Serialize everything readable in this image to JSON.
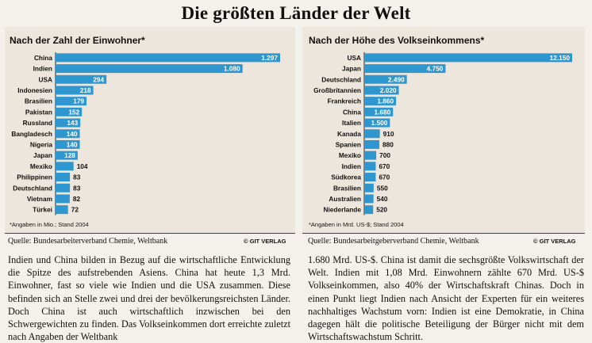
{
  "title": "Die größten Länder der Welt",
  "left": {
    "subtitle": "Nach der Zahl der Einwohner*",
    "footnote": "*Angaben in Mio.; Stand 2004",
    "source": "Quelle: Bundesarbeiterverband Chemie, Weltbank",
    "credit": "© GIT VERLAG"
  },
  "right": {
    "subtitle": "Nach der Höhe des Volkseinkommens*",
    "footnote": "*Angaben in Mrd. US-$; Stand 2004",
    "source": "Quelle: Bundesarbeitgeberverband Chemie, Weltbank",
    "credit": "© GIT VERLAG"
  },
  "colors": {
    "bar": "#2f97d0",
    "bar_text": "#ffffff",
    "label": "#111111"
  },
  "chart_data": [
    {
      "type": "bar",
      "orientation": "horizontal",
      "title": "Nach der Zahl der Einwohner*",
      "unit": "Mio.",
      "categories": [
        "China",
        "Indien",
        "USA",
        "Indonesien",
        "Brasilien",
        "Pakistan",
        "Russland",
        "Bangladesch",
        "Nigeria",
        "Japan",
        "Mexiko",
        "Philippinen",
        "Deutschland",
        "Vietnam",
        "Türkei"
      ],
      "values": [
        1297,
        1080,
        294,
        218,
        179,
        152,
        143,
        140,
        140,
        128,
        104,
        83,
        83,
        82,
        72
      ],
      "value_labels": [
        "1.297",
        "1.080",
        "294",
        "218",
        "179",
        "152",
        "143",
        "140",
        "140",
        "128",
        "104",
        "83",
        "83",
        "82",
        "72"
      ],
      "xlim": [
        0,
        1297
      ]
    },
    {
      "type": "bar",
      "orientation": "horizontal",
      "title": "Nach der Höhe des Volkseinkommens*",
      "unit": "Mrd. US-$",
      "categories": [
        "USA",
        "Japan",
        "Deutschland",
        "Großbritannien",
        "Frankreich",
        "China",
        "Italien",
        "Kanada",
        "Spanien",
        "Mexiko",
        "Indien",
        "Südkorea",
        "Brasilien",
        "Australien",
        "Niederlande"
      ],
      "values": [
        12150,
        4750,
        2490,
        2020,
        1860,
        1680,
        1500,
        910,
        880,
        700,
        670,
        670,
        550,
        540,
        520
      ],
      "value_labels": [
        "12.150",
        "4.750",
        "2.490",
        "2.020",
        "1.860",
        "1.680",
        "1.500",
        "910",
        "880",
        "700",
        "670",
        "670",
        "550",
        "540",
        "520"
      ],
      "xlim": [
        0,
        12150
      ]
    }
  ],
  "article_left": "Indien und China bilden in Bezug auf die wirtschaftliche Entwicklung die Spitze des aufstrebenden Asiens. China hat heute 1,3 Mrd. Einwohner, fast so viele wie Indien und die USA zusammen. Diese befinden sich an Stelle zwei und drei der bevölkerungsreichsten Länder. Doch China ist auch wirtschaftlich inzwischen bei den Schwergewichten zu finden. Das Volkseinkommen dort erreichte zuletzt nach Angaben der Weltbank",
  "article_right": "1.680 Mrd. US-$. China ist damit die sechsgrößte Volkswirtschaft der Welt. Indien mit 1,08 Mrd. Einwohnern zählte 670 Mrd. US-$ Volkseinkommen, also 40% der Wirtschaftskraft Chinas. Doch in einen Punkt liegt Indien nach Ansicht der Experten für ein weiteres nachhaltiges Wachstum vorn: Indien ist eine Demokratie, in China dagegen hält die politische Beteiligung der Bürger nicht mit dem Wirtschaftswachstum Schritt."
}
